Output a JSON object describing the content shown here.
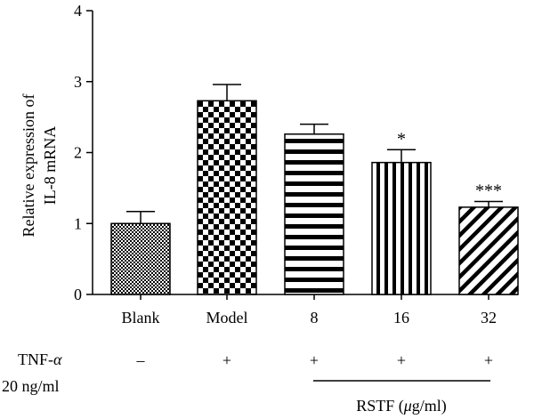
{
  "chart_data": {
    "type": "bar",
    "ylabel_lines": [
      "Relative expression of",
      "IL-8 mRNA"
    ],
    "ylim": [
      0,
      4
    ],
    "yticks": [
      "0",
      "1",
      "2",
      "3",
      "4"
    ],
    "categories": [
      "Blank",
      "Model",
      "8",
      "16",
      "32"
    ],
    "values": [
      1.0,
      2.73,
      2.26,
      1.86,
      1.23
    ],
    "errors": [
      0.17,
      0.23,
      0.14,
      0.18,
      0.08
    ],
    "significance": [
      "",
      "",
      "",
      "*",
      "***"
    ],
    "patterns": [
      "fine-check",
      "coarse-check",
      "horizontal-stripes",
      "vertical-stripes",
      "diagonal-stripes"
    ],
    "grid": false
  },
  "treatment": {
    "tnf_label": "TNF-",
    "tnf_alpha": "α",
    "dose_label": "20 ng/ml",
    "signs": [
      "–",
      "+",
      "+",
      "+",
      "+"
    ],
    "rstf_prefix": "RSTF (",
    "rstf_mu": "μ",
    "rstf_suffix": "g/ml)"
  }
}
